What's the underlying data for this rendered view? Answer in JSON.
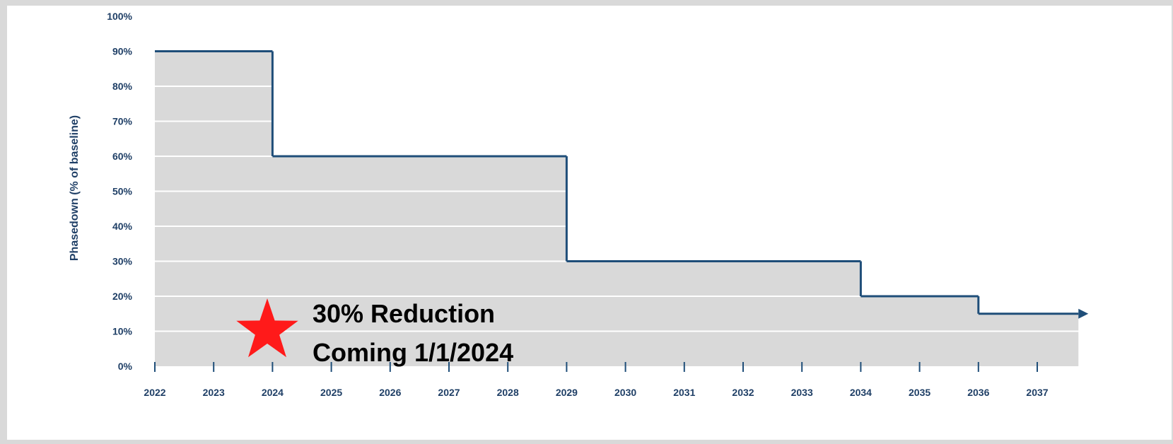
{
  "chart_data": {
    "type": "area",
    "ylabel": "Phasedown (% of baseline)",
    "xlabel": "",
    "title": "",
    "y_ticks": [
      "0%",
      "10%",
      "20%",
      "30%",
      "40%",
      "50%",
      "60%",
      "70%",
      "80%",
      "90%",
      "100%"
    ],
    "x_ticks": [
      "2022",
      "2023",
      "2024",
      "2025",
      "2026",
      "2027",
      "2028",
      "2029",
      "2030",
      "2031",
      "2032",
      "2033",
      "2034",
      "2035",
      "2036",
      "2037"
    ],
    "ylim": [
      0,
      100
    ],
    "xlim": [
      2022,
      2037.7
    ],
    "grid": "horizontal",
    "steps": [
      {
        "from": 2022,
        "to": 2024,
        "value": 90
      },
      {
        "from": 2024,
        "to": 2029,
        "value": 60
      },
      {
        "from": 2029,
        "to": 2034,
        "value": 30
      },
      {
        "from": 2034,
        "to": 2036,
        "value": 20
      },
      {
        "from": 2036,
        "to": 2037.7,
        "value": 15
      }
    ],
    "end_arrow": true,
    "annotation": {
      "lines": [
        "30% Reduction",
        "Coming 1/1/2024"
      ],
      "marker": "star",
      "marker_color": "#ff1a1a"
    },
    "colors": {
      "line": "#1f4e79",
      "fill": "#d9d9d9",
      "grid": "#ffffff",
      "text": "#1f3f66"
    }
  }
}
